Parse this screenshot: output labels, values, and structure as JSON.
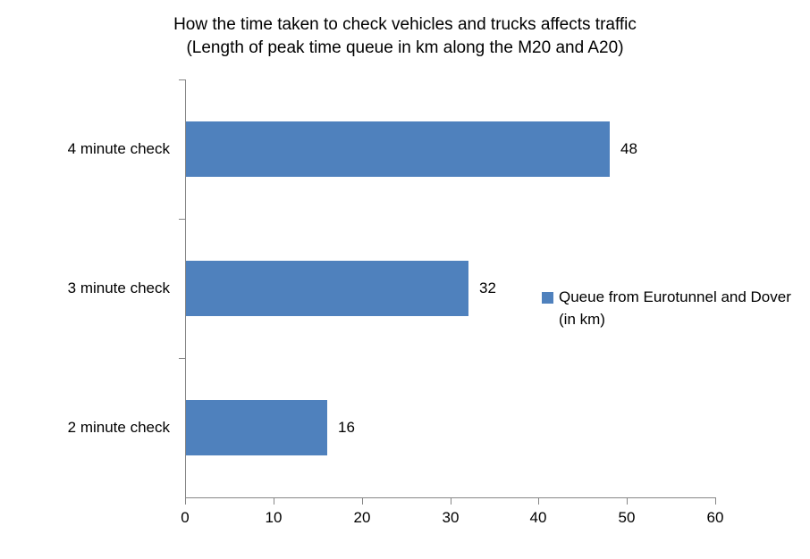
{
  "title": {
    "line1": "How the time taken to check vehicles and trucks affects traffic",
    "line2": "(Length of peak time queue in km along the M20 and A20)"
  },
  "legend": {
    "label": "Queue from Eurotunnel and Dover (in km)",
    "marker_color": "#4F81BD"
  },
  "chart_data": {
    "type": "bar",
    "orientation": "horizontal",
    "title": "How the time taken to check vehicles and trucks affects traffic",
    "subtitle": "(Length of peak time queue in km along the M20 and A20)",
    "categories": [
      "4 minute check",
      "3 minute check",
      "2 minute check"
    ],
    "series": [
      {
        "name": "Queue from Eurotunnel and Dover (in km)",
        "values": [
          48,
          32,
          16
        ]
      }
    ],
    "data_labels": [
      "48",
      "32",
      "16"
    ],
    "x_ticks": [
      "0",
      "10",
      "20",
      "30",
      "40",
      "50",
      "60"
    ],
    "xlim": [
      0,
      60
    ],
    "grid": false,
    "legend_position": "right",
    "bar_color": "#4F81BD",
    "axis_color": "#868686",
    "text_color": "#000000"
  }
}
